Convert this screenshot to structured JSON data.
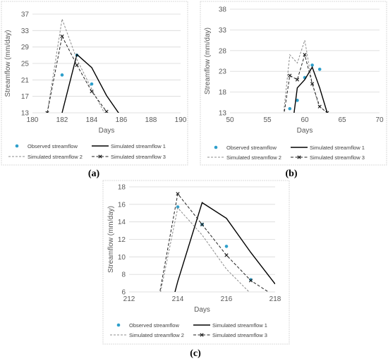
{
  "figure": {
    "labels": [
      "(a)",
      "(b)",
      "(c)"
    ]
  },
  "colors": {
    "observed": "#2e9fcb",
    "sim1": "#000000",
    "sim2": "#8c8c8c",
    "sim3": "#222222",
    "grid": "#d9d9d9",
    "frame": "#d0d0d0"
  },
  "chart_data": [
    {
      "type": "line",
      "panel": "(a)",
      "xlabel": "Days",
      "ylabel": "Streamflow (mm/day)",
      "xlim": [
        180,
        190
      ],
      "ylim": [
        13,
        37
      ],
      "xticks": [
        180,
        182,
        184,
        186,
        188,
        190
      ],
      "yticks": [
        13,
        17,
        21,
        25,
        29,
        33,
        37
      ],
      "grid": "horizontal",
      "legend": "bottom",
      "series": [
        {
          "name": "Observed streamflow",
          "style": "marker",
          "x": [
            182,
            183,
            184
          ],
          "y": [
            22.2,
            27.0,
            20.0
          ]
        },
        {
          "name": "Simulated streamflow 1",
          "style": "solid",
          "x": [
            182,
            183,
            184,
            185,
            186
          ],
          "y": [
            13.0,
            27.2,
            24.0,
            17.2,
            12.0
          ]
        },
        {
          "name": "Simulated streamflow 2",
          "style": "dashed-gray",
          "x": [
            181,
            182,
            183,
            184,
            185
          ],
          "y": [
            13.0,
            35.8,
            26.0,
            18.8,
            12.0
          ]
        },
        {
          "name": "Simulated streamflow 3",
          "style": "dashed-x",
          "x": [
            181,
            182,
            183,
            184,
            185
          ],
          "y": [
            13.0,
            31.6,
            24.6,
            18.2,
            13.3
          ]
        }
      ]
    },
    {
      "type": "line",
      "panel": "(b)",
      "xlabel": "Days",
      "ylabel": "Streamflow (mm/day)",
      "xlim": [
        50,
        70
      ],
      "ylim": [
        13,
        38
      ],
      "xticks": [
        50,
        55,
        60,
        65,
        70
      ],
      "yticks": [
        13,
        18,
        23,
        28,
        33,
        38
      ],
      "grid": "horizontal",
      "legend": "bottom",
      "series": [
        {
          "name": "Observed streamflow",
          "style": "marker",
          "x": [
            58,
            59,
            60,
            61,
            62
          ],
          "y": [
            14.0,
            16.0,
            21.5,
            24.5,
            23.5
          ]
        },
        {
          "name": "Simulated streamflow 1",
          "style": "solid",
          "x": [
            58,
            59,
            60,
            61,
            62,
            63
          ],
          "y": [
            5.0,
            19.0,
            21.0,
            24.0,
            19.0,
            13.0
          ]
        },
        {
          "name": "Simulated streamflow 2",
          "style": "dashed-gray",
          "x": [
            57,
            58,
            59,
            60,
            61,
            62
          ],
          "y": [
            10.0,
            27.0,
            25.0,
            30.5,
            20.0,
            14.0
          ]
        },
        {
          "name": "Simulated streamflow 3",
          "style": "dashed-x",
          "x": [
            57,
            58,
            59,
            60,
            61,
            62,
            63
          ],
          "y": [
            10.0,
            22.0,
            21.0,
            27.0,
            20.0,
            14.5,
            13.0
          ]
        }
      ]
    },
    {
      "type": "line",
      "panel": "(c)",
      "xlabel": "Days",
      "ylabel": "Streamflow (mm/day)",
      "xlim": [
        212,
        218
      ],
      "ylim": [
        6,
        18
      ],
      "xticks": [
        212,
        214,
        216,
        218
      ],
      "yticks": [
        6,
        8,
        10,
        12,
        14,
        16,
        18
      ],
      "grid": "horizontal",
      "legend": "bottom",
      "series": [
        {
          "name": "Observed streamflow",
          "style": "marker",
          "x": [
            214,
            215,
            216,
            217
          ],
          "y": [
            15.7,
            13.7,
            11.2,
            7.4
          ]
        },
        {
          "name": "Simulated streamflow 1",
          "style": "solid",
          "x": [
            213.5,
            214,
            215,
            216,
            217,
            218
          ],
          "y": [
            2.0,
            7.2,
            16.2,
            14.4,
            10.5,
            6.9
          ]
        },
        {
          "name": "Simulated streamflow 2",
          "style": "dashed-gray",
          "x": [
            213,
            214,
            215,
            216,
            217,
            218
          ],
          "y": [
            2.0,
            15.6,
            12.5,
            8.6,
            5.8,
            3.5
          ]
        },
        {
          "name": "Simulated streamflow 3",
          "style": "dashed-x",
          "x": [
            213,
            214,
            215,
            216,
            217,
            218
          ],
          "y": [
            2.0,
            17.2,
            13.7,
            10.2,
            7.3,
            5.5
          ]
        }
      ]
    }
  ]
}
